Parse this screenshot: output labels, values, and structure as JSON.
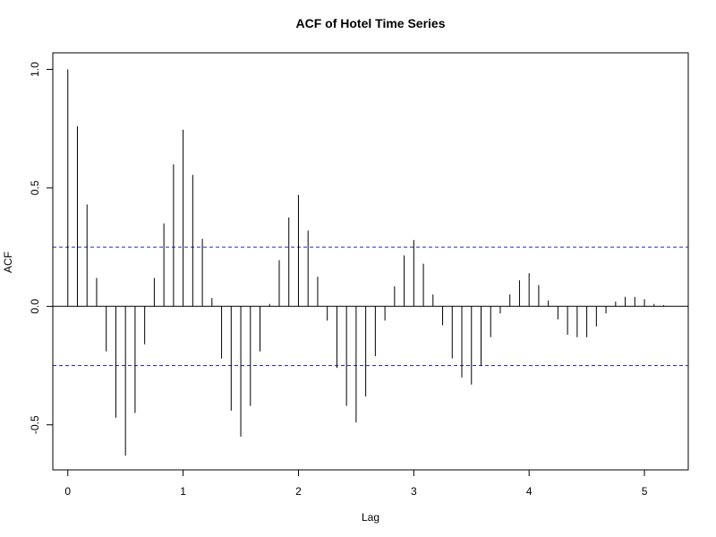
{
  "chart_data": {
    "type": "bar",
    "title": "ACF of Hotel Time Series",
    "xlabel": "Lag",
    "ylabel": "ACF",
    "lag_step": 0.0833333,
    "xlim": [
      -0.13,
      5.38
    ],
    "ylim": [
      -0.69,
      1.07
    ],
    "xticks": [
      0,
      1,
      2,
      3,
      4,
      5
    ],
    "xtick_labels": [
      "0",
      "1",
      "2",
      "3",
      "4",
      "5"
    ],
    "yticks": [
      -0.5,
      0.0,
      0.5,
      1.0
    ],
    "ytick_labels": [
      "-0.5",
      "0.0",
      "0.5",
      "1.0"
    ],
    "confidence_bounds": [
      0.25,
      -0.25
    ],
    "grid": false,
    "acf_values": [
      1.0,
      0.76,
      0.43,
      0.12,
      -0.19,
      -0.47,
      -0.63,
      -0.45,
      -0.16,
      0.12,
      0.35,
      0.6,
      0.745,
      0.555,
      0.285,
      0.035,
      -0.22,
      -0.44,
      -0.55,
      -0.42,
      -0.19,
      0.01,
      0.195,
      0.375,
      0.47,
      0.32,
      0.125,
      -0.06,
      -0.26,
      -0.42,
      -0.49,
      -0.38,
      -0.21,
      -0.06,
      0.085,
      0.215,
      0.28,
      0.18,
      0.05,
      -0.08,
      -0.22,
      -0.3,
      -0.33,
      -0.25,
      -0.13,
      -0.03,
      0.05,
      0.11,
      0.14,
      0.09,
      0.025,
      -0.055,
      -0.12,
      -0.13,
      -0.13,
      -0.085,
      -0.03,
      0.02,
      0.04,
      0.04,
      0.03,
      0.01,
      0.005
    ]
  }
}
